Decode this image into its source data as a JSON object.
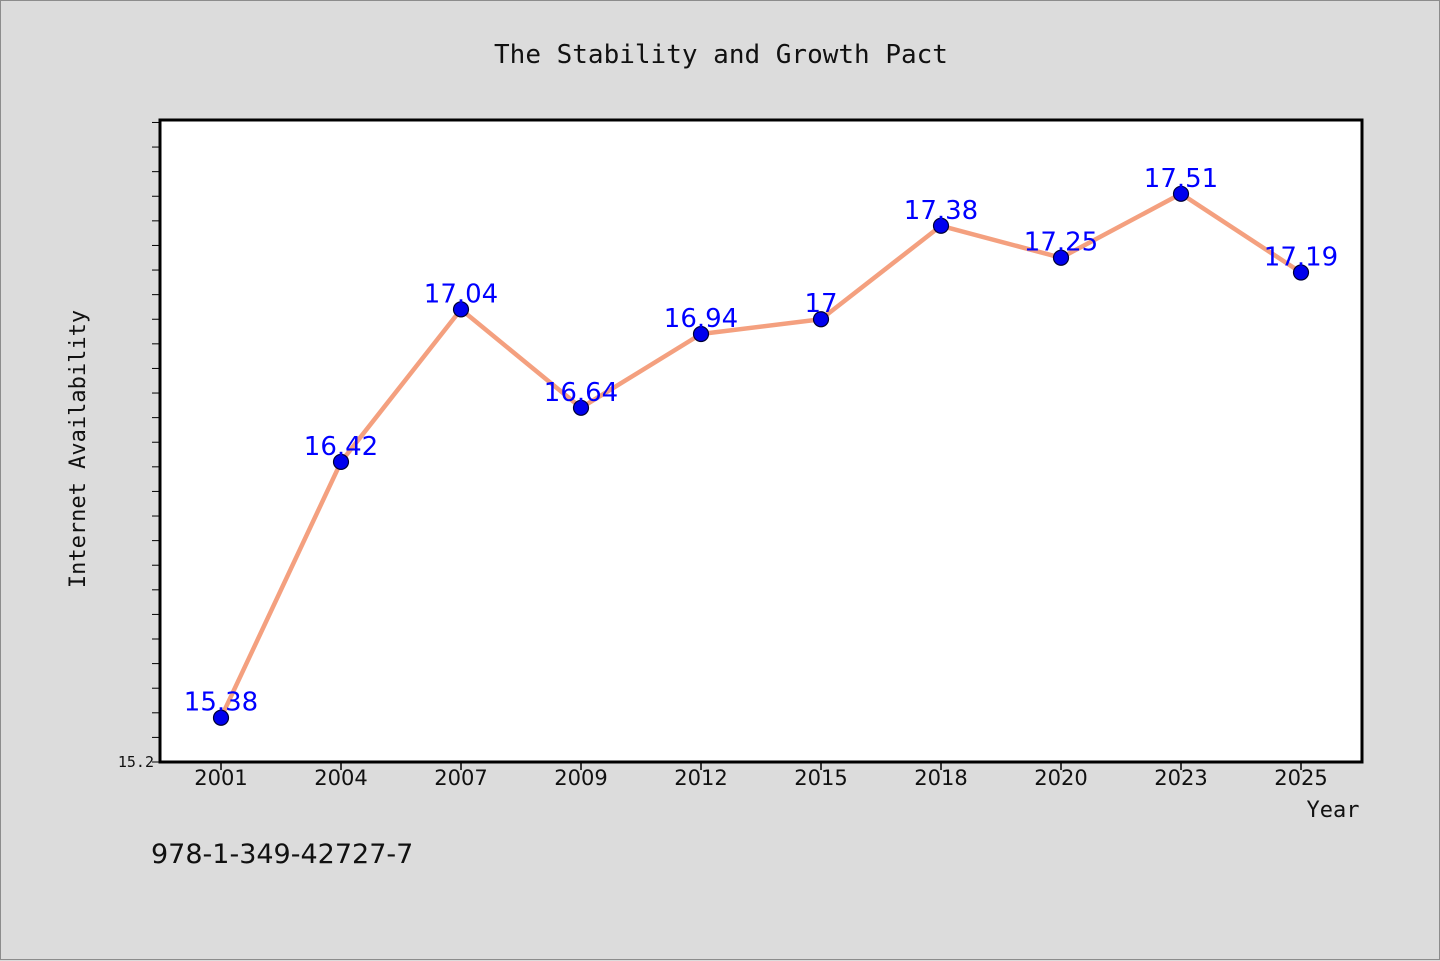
{
  "chart_data": {
    "type": "line",
    "title": "The Stability and Growth Pact",
    "xlabel": "Year",
    "ylabel": "Internet Availability",
    "categories": [
      "2001",
      "2004",
      "2007",
      "2009",
      "2012",
      "2015",
      "2018",
      "2020",
      "2023",
      "2025"
    ],
    "series": [
      {
        "values": [
          15.38,
          16.42,
          17.04,
          16.64,
          16.94,
          17,
          17.38,
          17.25,
          17.51,
          17.19
        ],
        "labels": [
          "15.38",
          "16.42",
          "17.04",
          "16.64",
          "16.94",
          "17",
          "17.38",
          "17.25",
          "17.51",
          "17.19"
        ]
      }
    ],
    "ylim": [
      15.2,
      17.81
    ],
    "y_tick_labels": [
      "15.2"
    ],
    "grid": false,
    "legend": "none",
    "colors": {
      "line": "#f4a07f",
      "marker_fill": "#0000ee",
      "marker_edge": "#000033",
      "data_label": "#0000ff",
      "plot_background": "#ffffff",
      "figure_background": "#dcdcdc"
    }
  },
  "footer_text": "978-1-349-42727-7"
}
